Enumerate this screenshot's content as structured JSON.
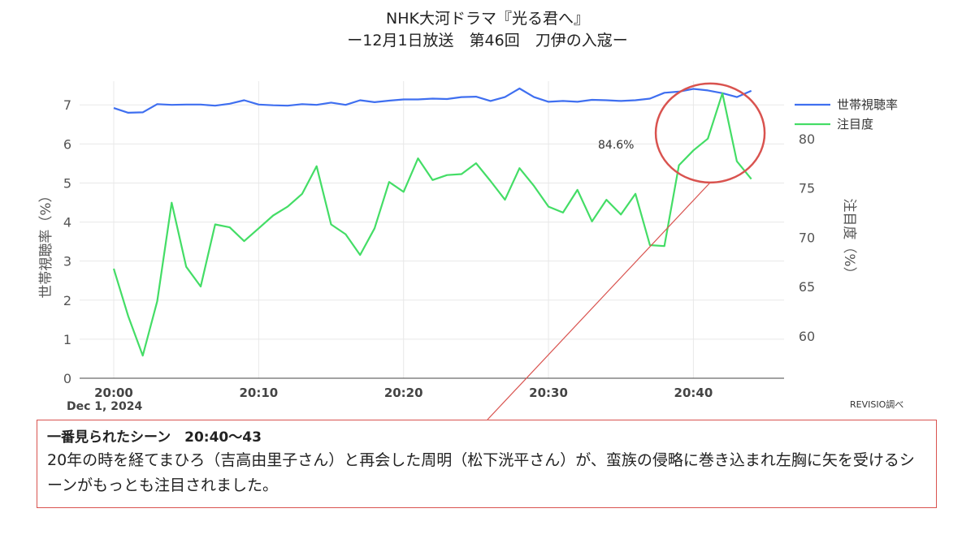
{
  "title": {
    "line1": "NHK大河ドラマ『光る君へ』",
    "line2": "ー12月1日放送　第46回　刀伊の入寇ー"
  },
  "source_note": "REVISIO調べ",
  "date_label": "Dec 1, 2024",
  "peak_annotation": "84.6%",
  "info_box": {
    "heading": "一番見られたシーン　20:40〜43",
    "body": "20年の時を経てまひろ（吉高由里子さん）と再会した周明（松下洸平さん）が、蛮族の侵略に巻き込まれ左胸に矢を受けるシーンがもっとも注目されました。"
  },
  "colors": {
    "viewing_rate": "#3f6ff0",
    "attention": "#44dd66",
    "highlight": "#d9534f",
    "grid": "#e8e8e8"
  },
  "chart_data": {
    "type": "line",
    "x_minutes_from_20_00": [
      0,
      1,
      2,
      3,
      4,
      5,
      6,
      7,
      8,
      9,
      10,
      11,
      12,
      13,
      14,
      15,
      16,
      17,
      18,
      19,
      20,
      21,
      22,
      23,
      24,
      25,
      26,
      27,
      28,
      29,
      30,
      31,
      32,
      33,
      34,
      35,
      36,
      37,
      38,
      39,
      40,
      41,
      42,
      43,
      44
    ],
    "xticks": [
      "20:00",
      "20:10",
      "20:20",
      "20:30",
      "20:40"
    ],
    "series": [
      {
        "name": "世帯視聴率",
        "axis": "left",
        "values": [
          6.92,
          6.8,
          6.81,
          7.02,
          7.0,
          7.01,
          7.01,
          6.98,
          7.03,
          7.12,
          7.01,
          6.99,
          6.98,
          7.02,
          7.0,
          7.06,
          7.0,
          7.12,
          7.07,
          7.11,
          7.14,
          7.14,
          7.16,
          7.15,
          7.2,
          7.21,
          7.1,
          7.2,
          7.42,
          7.2,
          7.08,
          7.1,
          7.08,
          7.13,
          7.12,
          7.1,
          7.12,
          7.16,
          7.31,
          7.34,
          7.41,
          7.37,
          7.3,
          7.2,
          7.36
        ]
      },
      {
        "name": "注目度",
        "axis": "right",
        "values": [
          66.8,
          62.0,
          58.0,
          63.5,
          73.5,
          67.0,
          65.0,
          71.3,
          71.0,
          69.6,
          70.9,
          72.2,
          73.1,
          74.4,
          77.2,
          71.3,
          70.3,
          68.2,
          70.9,
          75.6,
          74.6,
          78.0,
          75.8,
          76.3,
          76.4,
          77.5,
          75.7,
          73.8,
          77.0,
          75.2,
          73.1,
          72.5,
          74.8,
          71.6,
          73.8,
          72.3,
          74.4,
          69.2,
          69.1,
          77.3,
          78.8,
          80.0,
          84.6,
          77.7,
          75.9
        ]
      }
    ],
    "left_axis": {
      "label": "世帯視聴率（%）",
      "ylim": [
        0,
        7.4
      ],
      "ticks": [
        0,
        1,
        2,
        3,
        4,
        5,
        6,
        7
      ]
    },
    "right_axis": {
      "label": "注目度（%）",
      "ylim": [
        55.7,
        85.0
      ],
      "ticks": [
        60,
        65,
        70,
        75,
        80
      ]
    },
    "grid": true,
    "legend_position": "top-right"
  }
}
